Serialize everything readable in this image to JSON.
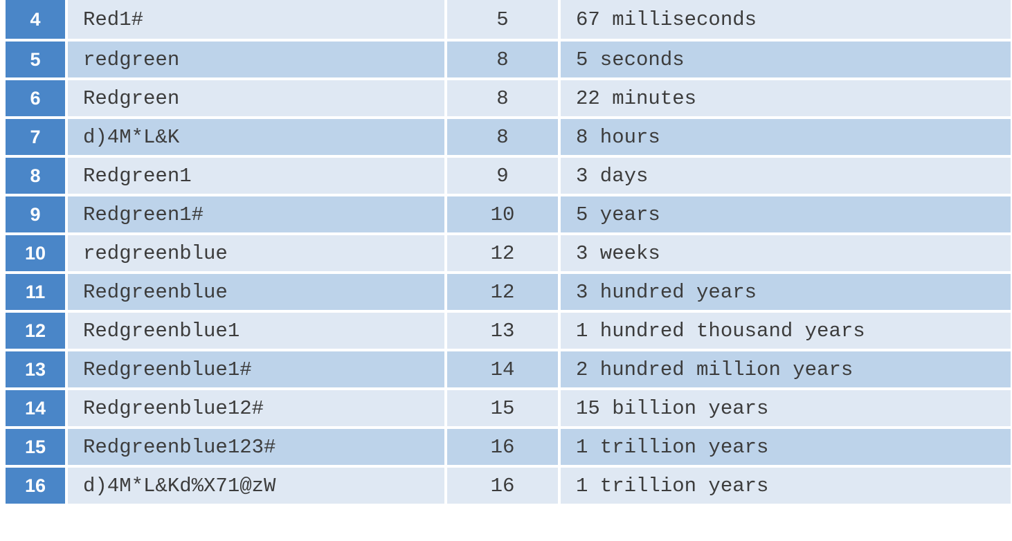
{
  "table": {
    "rows": [
      {
        "num": "4",
        "password": "Red1#",
        "length": "5",
        "time": "67 milliseconds"
      },
      {
        "num": "5",
        "password": "redgreen",
        "length": "8",
        "time": "5 seconds"
      },
      {
        "num": "6",
        "password": "Redgreen",
        "length": "8",
        "time": "22 minutes"
      },
      {
        "num": "7",
        "password": "d)4M*L&K",
        "length": "8",
        "time": "8 hours"
      },
      {
        "num": "8",
        "password": "Redgreen1",
        "length": "9",
        "time": "3 days"
      },
      {
        "num": "9",
        "password": "Redgreen1#",
        "length": "10",
        "time": "5 years"
      },
      {
        "num": "10",
        "password": "redgreenblue",
        "length": "12",
        "time": "3 weeks"
      },
      {
        "num": "11",
        "password": "Redgreenblue",
        "length": "12",
        "time": "3 hundred years"
      },
      {
        "num": "12",
        "password": "Redgreenblue1",
        "length": "13",
        "time": "1 hundred thousand years"
      },
      {
        "num": "13",
        "password": "Redgreenblue1#",
        "length": "14",
        "time": "2 hundred million years"
      },
      {
        "num": "14",
        "password": "Redgreenblue12#",
        "length": "15",
        "time": "15 billion years"
      },
      {
        "num": "15",
        "password": "Redgreenblue123#",
        "length": "16",
        "time": "1 trillion years"
      },
      {
        "num": "16",
        "password": "d)4M*L&Kd%X71@zW",
        "length": "16",
        "time": "1 trillion years"
      }
    ]
  },
  "colors": {
    "number_column": "#4a86c8",
    "row_light": "#dfe8f3",
    "row_dark": "#bdd3ea",
    "text": "#3c3c3c"
  }
}
